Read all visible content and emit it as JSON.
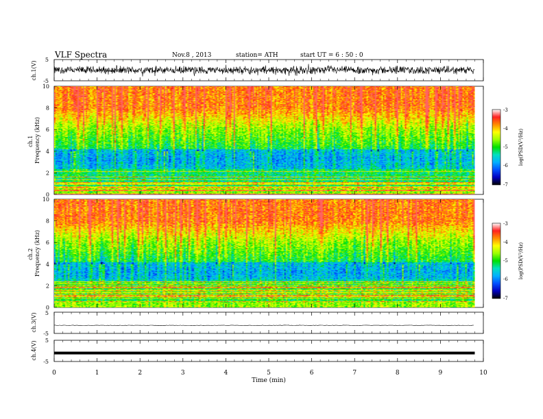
{
  "header": {
    "title": "VLF  Spectra",
    "date": "Nov.8  , 2013",
    "station": "station= ATH",
    "start": "start  UT  =   6  : 50 : 0"
  },
  "colorbar": {
    "label": "log(PSD(V²/Hz)",
    "ticks": [
      "-3",
      "-4",
      "-5",
      "-6",
      "-7"
    ],
    "colors": [
      "#ffffff",
      "#ff2020",
      "#ff8c00",
      "#ffff00",
      "#9cff00",
      "#00e000",
      "#00e0c0",
      "#00b0ff",
      "#0050ff",
      "#0000c0",
      "#000000"
    ]
  },
  "chart_data": [
    {
      "type": "line",
      "panel": "ch.1",
      "ylabel": "ch.1(V)",
      "ylim": [
        -5,
        5
      ],
      "y_ticks": [
        "5",
        "-5"
      ],
      "description_values": {
        "mean": 0.0,
        "amplitude_envelope": 1.5
      }
    },
    {
      "type": "heatmap",
      "panel": "ch.1 spectrogram",
      "ylabel": "ch.1 Frequency (kHz)",
      "ylim": [
        0,
        10
      ],
      "y_ticks": [
        "10",
        "8",
        "6",
        "4",
        "2",
        "0"
      ],
      "xlim": [
        0,
        10
      ],
      "data_end_min": 9.8,
      "zlim": [
        -7,
        -3
      ],
      "zlabel": "log(PSD(V²/Hz)"
    },
    {
      "type": "heatmap",
      "panel": "ch.2 spectrogram",
      "ylabel": "ch.2 Frequency (kHz)",
      "ylim": [
        0,
        10
      ],
      "y_ticks": [
        "10",
        "8",
        "6",
        "4",
        "2",
        "0"
      ],
      "xlim": [
        0,
        10
      ],
      "data_end_min": 9.8,
      "zlim": [
        -7,
        -3
      ],
      "zlabel": "log(PSD(V²/Hz)"
    },
    {
      "type": "line",
      "panel": "ch.3",
      "ylabel": "ch.3(V)",
      "ylim": [
        -5,
        5
      ],
      "y_ticks": [
        "5",
        "-5"
      ],
      "constant_value": -1.2
    },
    {
      "type": "line",
      "panel": "ch.4",
      "ylabel": "ch.4(V)",
      "ylim": [
        -5,
        5
      ],
      "y_ticks": [
        "5",
        "0",
        "-5"
      ],
      "constant_value": -1.0
    }
  ],
  "x_axis": {
    "label": "Time  (min)",
    "ticks": [
      "0",
      "1",
      "2",
      "3",
      "4",
      "5",
      "6",
      "7",
      "8",
      "9",
      "10"
    ],
    "xlim": [
      0,
      10
    ]
  }
}
